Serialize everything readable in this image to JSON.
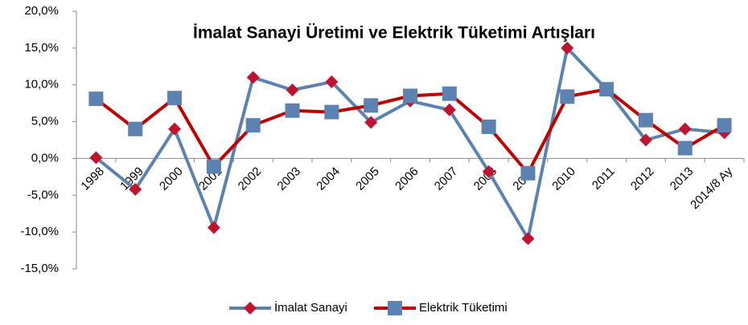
{
  "chart_data": {
    "type": "line",
    "title": "İmalat Sanayi Üretimi ve Elektrik Tüketimi Artışları",
    "categories": [
      "1998",
      "1999",
      "2000",
      "2001",
      "2002",
      "2003",
      "2004",
      "2005",
      "2006",
      "2007",
      "2008",
      "2009",
      "2010",
      "2011",
      "2012",
      "2013",
      "2014/8 Ay"
    ],
    "series": [
      {
        "name": "İmalat Sanayi",
        "color": "#5b82b0",
        "marker": "diamond",
        "marker_color": "#c0132f",
        "values": [
          0.1,
          -4.2,
          4.0,
          -9.4,
          11.0,
          9.3,
          10.4,
          4.9,
          7.8,
          6.6,
          -1.8,
          -10.9,
          15.0,
          9.4,
          2.5,
          4.0,
          3.5
        ]
      },
      {
        "name": "Elektrik Tüketimi",
        "color": "#c00000",
        "marker": "square",
        "marker_color": "#5b82b0",
        "values": [
          8.1,
          4.0,
          8.2,
          -1.1,
          4.5,
          6.5,
          6.3,
          7.2,
          8.5,
          8.8,
          4.3,
          -2.0,
          8.4,
          9.4,
          5.2,
          1.4,
          4.5
        ]
      }
    ],
    "ylim": [
      -15,
      20
    ],
    "yticks": [
      {
        "value": -15,
        "label": "-15,0%"
      },
      {
        "value": -10,
        "label": "-10,0%"
      },
      {
        "value": -5,
        "label": "-5,0%"
      },
      {
        "value": 0,
        "label": "0,0%"
      },
      {
        "value": 5,
        "label": "5,0%"
      },
      {
        "value": 10,
        "label": "10,0%"
      },
      {
        "value": 15,
        "label": "15,0%"
      },
      {
        "value": 20,
        "label": "20,0%"
      }
    ],
    "grid": false,
    "legend": "bottom"
  }
}
